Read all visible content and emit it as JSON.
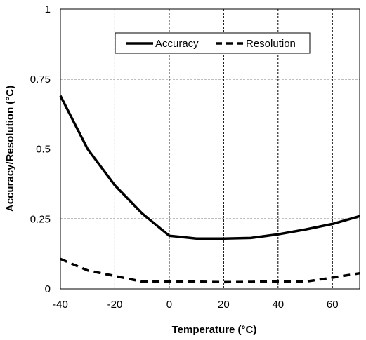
{
  "chart_data": {
    "type": "line",
    "title": "",
    "xlabel": "Temperature  (°C)",
    "ylabel": "Accuracy/Resolution  (°C)",
    "xlim": [
      -40,
      70
    ],
    "ylim": [
      0,
      1
    ],
    "x_ticks": [
      "-40",
      "-20",
      "0",
      "20",
      "40",
      "60"
    ],
    "y_ticks": [
      "0",
      "0.25",
      "0.5",
      "0.75",
      "1"
    ],
    "grid": true,
    "legend_position": "top-center",
    "series": [
      {
        "name": "Accuracy",
        "line_style": "solid",
        "color": "#000000",
        "x": [
          -40,
          -30,
          -20,
          -10,
          0,
          10,
          20,
          30,
          40,
          50,
          60,
          70
        ],
        "y": [
          0.69,
          0.5,
          0.37,
          0.27,
          0.19,
          0.18,
          0.18,
          0.182,
          0.195,
          0.212,
          0.232,
          0.26
        ]
      },
      {
        "name": "Resolution",
        "line_style": "dashed",
        "color": "#000000",
        "x": [
          -40,
          -30,
          -20,
          -10,
          0,
          10,
          20,
          30,
          40,
          50,
          60,
          70
        ],
        "y": [
          0.107,
          0.066,
          0.046,
          0.026,
          0.027,
          0.026,
          0.024,
          0.025,
          0.027,
          0.026,
          0.04,
          0.056
        ]
      }
    ]
  }
}
